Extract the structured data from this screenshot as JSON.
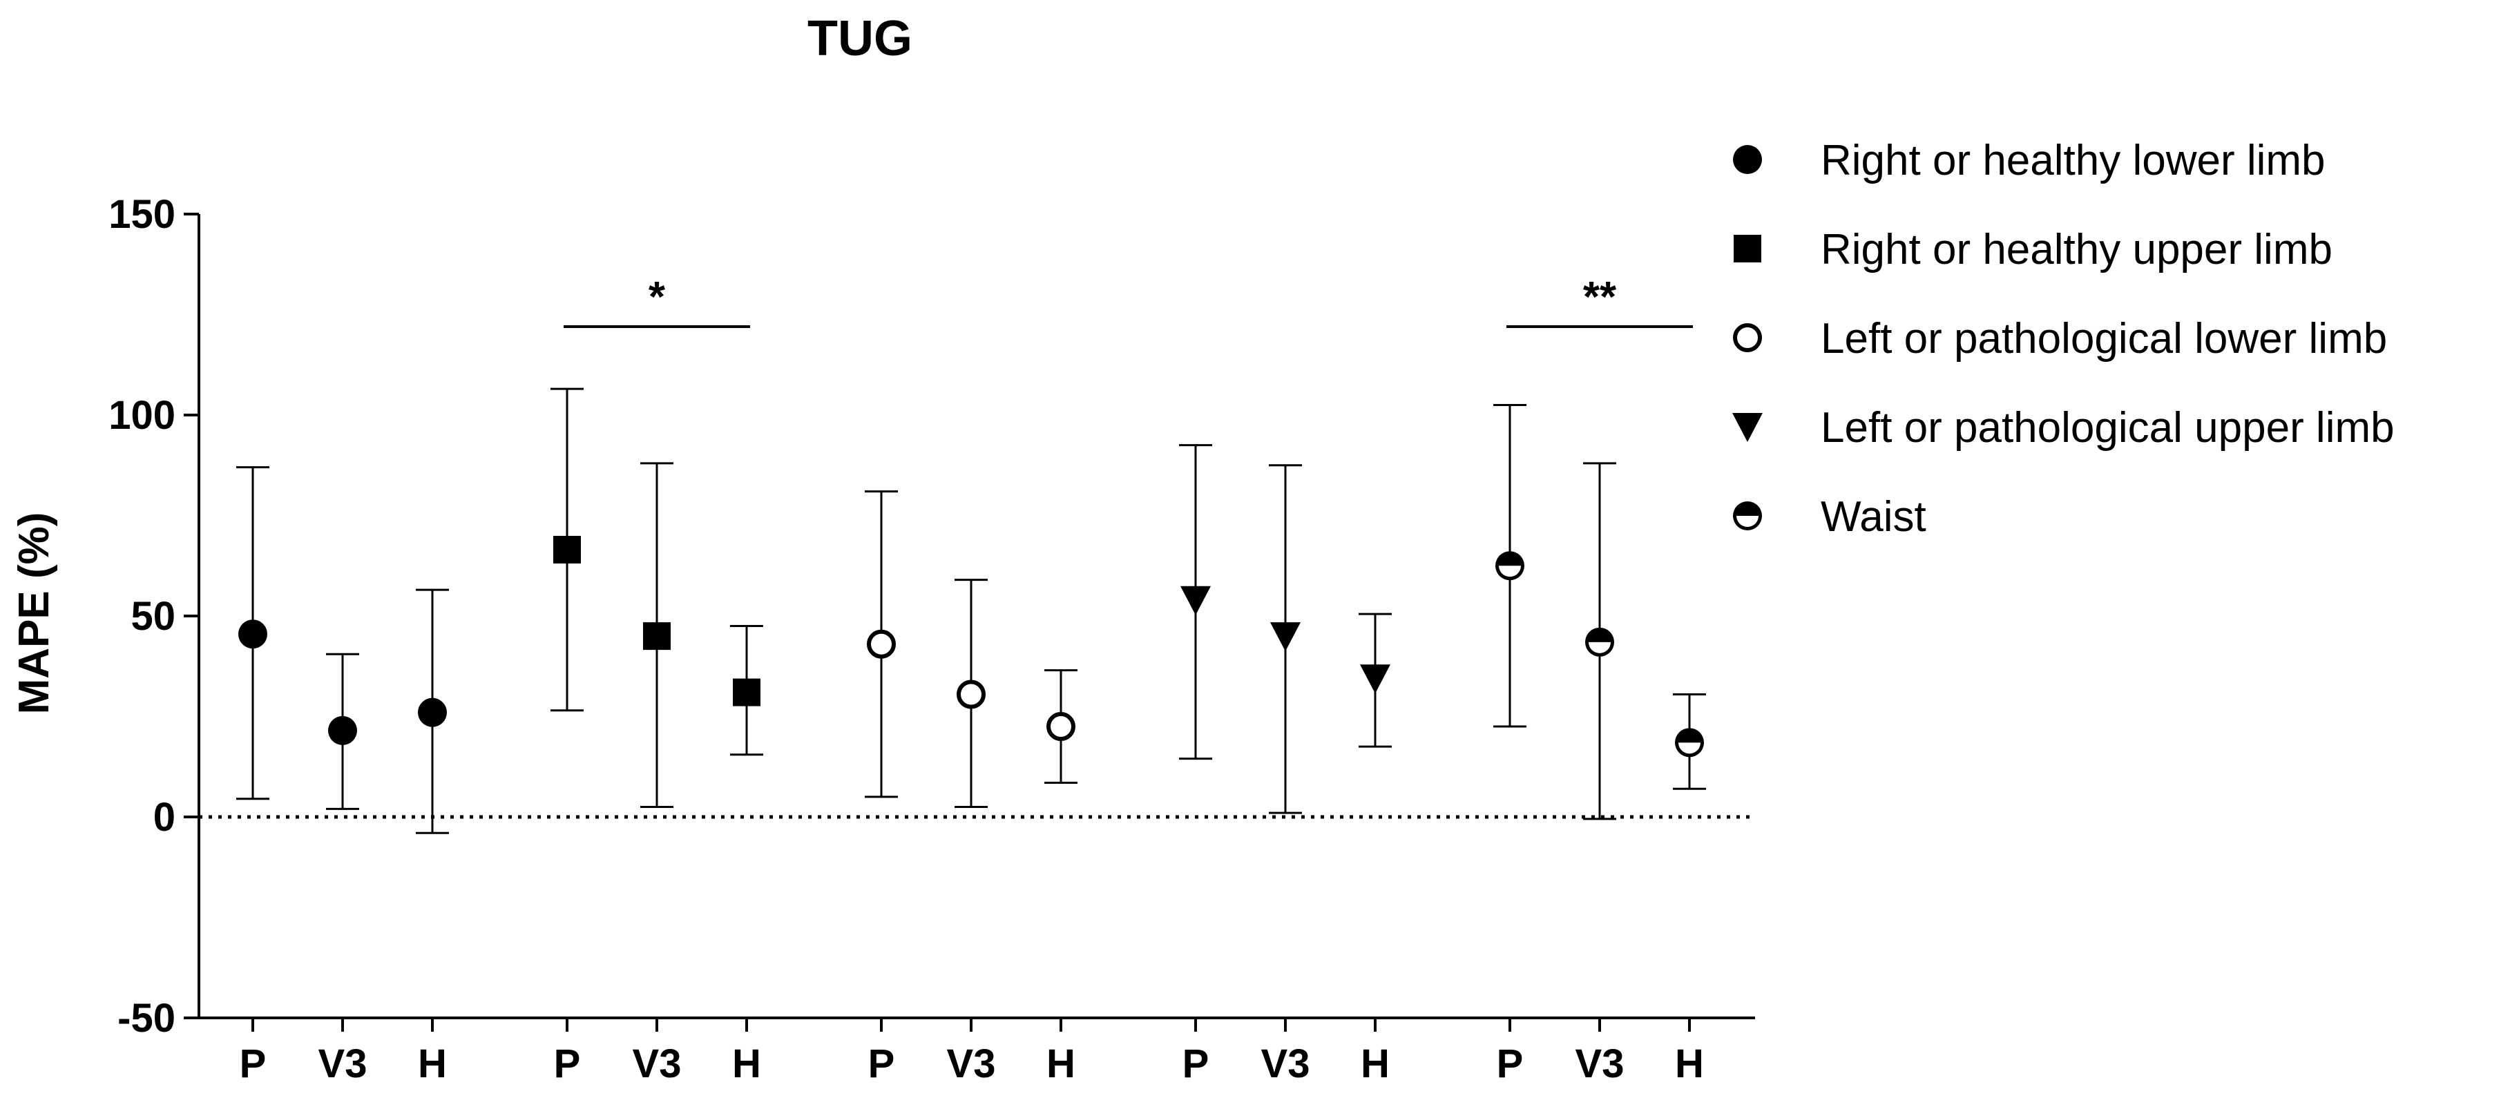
{
  "chart_data": {
    "type": "scatter",
    "title": "TUG",
    "xlabel": "",
    "ylabel": "MAPE (%)",
    "ylim": [
      -50,
      150
    ],
    "yticks": [
      -50,
      0,
      50,
      100,
      150
    ],
    "reference_line": {
      "y": 0,
      "style": "dotted"
    },
    "categories": [
      "P",
      "V3",
      "H"
    ],
    "series": [
      {
        "name": "Right or healthy lower limb",
        "marker": "filled-circle",
        "labels": [
          "P",
          "V3",
          "H"
        ],
        "values": [
          45.5,
          21.5,
          26
        ],
        "err_low": [
          4.5,
          2,
          -4
        ],
        "err_high": [
          87,
          40.5,
          56.5
        ]
      },
      {
        "name": "Right or healthy upper limb",
        "marker": "filled-square",
        "labels": [
          "P",
          "V3",
          "H"
        ],
        "values": [
          66.5,
          45,
          31
        ],
        "err_low": [
          26.5,
          2.5,
          15.5
        ],
        "err_high": [
          106.5,
          88,
          47.5
        ]
      },
      {
        "name": "Left or pathological lower limb",
        "marker": "open-circle",
        "labels": [
          "P",
          "V3",
          "H"
        ],
        "values": [
          43,
          30.5,
          22.5
        ],
        "err_low": [
          5,
          2.5,
          8.5
        ],
        "err_high": [
          81,
          59,
          36.5
        ]
      },
      {
        "name": "Left or pathological upper limb",
        "marker": "filled-triangle-down",
        "labels": [
          "P",
          "V3",
          "H"
        ],
        "values": [
          54,
          45,
          34.5
        ],
        "err_low": [
          14.5,
          1,
          17.5
        ],
        "err_high": [
          92.5,
          87.5,
          50.5
        ]
      },
      {
        "name": "Waist",
        "marker": "half-filled-circle",
        "labels": [
          "P",
          "V3",
          "H"
        ],
        "values": [
          62.5,
          43.5,
          18.5
        ],
        "err_low": [
          22.5,
          -0.5,
          7
        ],
        "err_high": [
          102.5,
          88,
          30.5
        ]
      }
    ],
    "annotations": [
      {
        "label": "*",
        "series": 1,
        "from": "P",
        "to": "H",
        "y": 122
      },
      {
        "label": "**",
        "series": 4,
        "from": "P",
        "to": "H",
        "y": 122
      }
    ],
    "legend": "right"
  }
}
